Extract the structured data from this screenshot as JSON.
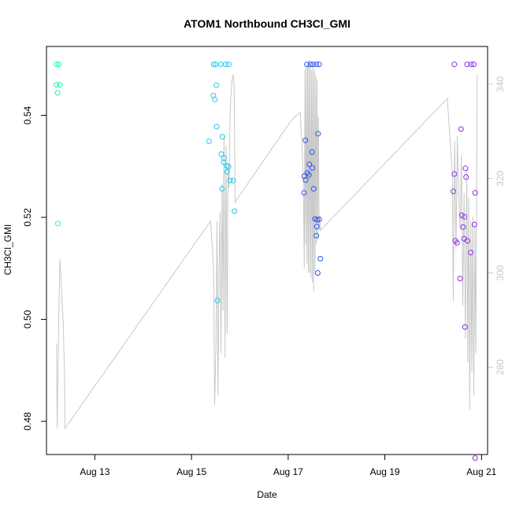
{
  "chart_data": {
    "type": "scatter",
    "title": "ATOM1 Northbound CH3Cl_GMI",
    "xlabel": "Date",
    "ylabel": "CH3Cl_GMI",
    "x_date_range": [
      "2016-08-12T00:00",
      "2016-08-21T03:00"
    ],
    "x_ticks": [
      {
        "value": "2016-08-13",
        "label": "Aug 13"
      },
      {
        "value": "2016-08-15",
        "label": "Aug 15"
      },
      {
        "value": "2016-08-17",
        "label": "Aug 17"
      },
      {
        "value": "2016-08-19",
        "label": "Aug 19"
      },
      {
        "value": "2016-08-21",
        "label": "Aug 21"
      }
    ],
    "ylim": [
      0.4735,
      0.5535
    ],
    "y_ticks": [
      0.48,
      0.5,
      0.52,
      0.54
    ],
    "y_tick_labels": [
      "0.48",
      "0.50",
      "0.52",
      "0.54"
    ],
    "y2lim": [
      261.5,
      348
    ],
    "y2_ticks": [
      280,
      300,
      320,
      340
    ],
    "y2_tick_labels": [
      "280",
      "300",
      "320",
      "340"
    ],
    "grid": false,
    "colors": {
      "axis": "#000000",
      "secondary_axis": "#c8c8c8",
      "line": "#c8c8c8"
    },
    "series": [
      {
        "color": "#22f2b8",
        "values": [
          [
            "2016-08-12T05:00",
            0.55
          ],
          [
            "2016-08-12T06:10",
            0.55
          ],
          [
            "2016-08-12T05:00",
            0.546
          ],
          [
            "2016-08-12T06:40",
            0.546
          ],
          [
            "2016-08-12T05:30",
            0.5444
          ],
          [
            "2016-08-12T05:40",
            0.5188
          ]
        ]
      },
      {
        "color": "#22c8ee",
        "values": [
          [
            "2016-08-15T11:00",
            0.55
          ],
          [
            "2016-08-15T12:00",
            0.55
          ],
          [
            "2016-08-15T14:30",
            0.55
          ],
          [
            "2016-08-15T17:00",
            0.55
          ],
          [
            "2016-08-15T18:30",
            0.55
          ],
          [
            "2016-08-15T12:20",
            0.5459
          ],
          [
            "2016-08-15T10:50",
            0.5439
          ],
          [
            "2016-08-15T11:40",
            0.5431
          ],
          [
            "2016-08-15T12:30",
            0.5378
          ],
          [
            "2016-08-15T15:20",
            0.5358
          ],
          [
            "2016-08-15T08:40",
            0.5349
          ],
          [
            "2016-08-15T14:50",
            0.5324
          ],
          [
            "2016-08-15T16:10",
            0.5316
          ],
          [
            "2016-08-15T16:00",
            0.5308
          ],
          [
            "2016-08-15T17:30",
            0.5301
          ],
          [
            "2016-08-15T18:20",
            0.5299
          ],
          [
            "2016-08-15T17:40",
            0.5289
          ],
          [
            "2016-08-15T19:10",
            0.5272
          ],
          [
            "2016-08-15T20:40",
            0.5272
          ],
          [
            "2016-08-15T15:10",
            0.5256
          ],
          [
            "2016-08-15T21:20",
            0.5212
          ],
          [
            "2016-08-15T12:50",
            0.5037
          ]
        ]
      },
      {
        "color": "#2c55ee",
        "values": [
          [
            "2016-08-17T09:20",
            0.55
          ],
          [
            "2016-08-17T11:00",
            0.55
          ],
          [
            "2016-08-17T12:20",
            0.55
          ],
          [
            "2016-08-17T14:00",
            0.55
          ],
          [
            "2016-08-17T15:20",
            0.55
          ],
          [
            "2016-08-17T14:50",
            0.5364
          ],
          [
            "2016-08-17T08:30",
            0.5351
          ],
          [
            "2016-08-17T11:50",
            0.5328
          ],
          [
            "2016-08-17T10:30",
            0.5304
          ],
          [
            "2016-08-17T12:00",
            0.5297
          ],
          [
            "2016-08-17T08:00",
            0.5281
          ],
          [
            "2016-08-17T09:30",
            0.5287
          ],
          [
            "2016-08-17T10:20",
            0.5283
          ],
          [
            "2016-08-17T08:40",
            0.5273
          ],
          [
            "2016-08-17T12:40",
            0.5256
          ],
          [
            "2016-08-17T07:50",
            0.5248
          ],
          [
            "2016-08-17T13:20",
            0.5197
          ],
          [
            "2016-08-17T15:20",
            0.5196
          ],
          [
            "2016-08-17T14:20",
            0.5195
          ],
          [
            "2016-08-17T14:10",
            0.5182
          ],
          [
            "2016-08-17T14:00",
            0.5164
          ],
          [
            "2016-08-17T16:00",
            0.5119
          ],
          [
            "2016-08-17T14:40",
            0.5091
          ]
        ]
      },
      {
        "color": "#8c2ee8",
        "values": [
          [
            "2016-08-20T10:30",
            0.55
          ],
          [
            "2016-08-20T16:50",
            0.55
          ],
          [
            "2016-08-20T18:50",
            0.55
          ],
          [
            "2016-08-20T20:10",
            0.55
          ],
          [
            "2016-08-20T13:50",
            0.5373
          ],
          [
            "2016-08-20T16:00",
            0.5296
          ],
          [
            "2016-08-20T10:30",
            0.5285
          ],
          [
            "2016-08-20T16:20",
            0.5279
          ],
          [
            "2016-08-20T10:00",
            0.5251
          ],
          [
            "2016-08-20T20:50",
            0.5248
          ],
          [
            "2016-08-20T14:10",
            0.5204
          ],
          [
            "2016-08-20T15:30",
            0.5201
          ],
          [
            "2016-08-20T20:30",
            0.5186
          ],
          [
            "2016-08-20T14:50",
            0.5181
          ],
          [
            "2016-08-20T15:20",
            0.5158
          ],
          [
            "2016-08-20T11:00",
            0.5154
          ],
          [
            "2016-08-20T17:00",
            0.5154
          ],
          [
            "2016-08-20T11:50",
            0.515
          ],
          [
            "2016-08-20T18:40",
            0.5131
          ],
          [
            "2016-08-20T13:20",
            0.508
          ],
          [
            "2016-08-20T15:50",
            0.4985
          ],
          [
            "2016-08-20T20:50",
            0.4728
          ]
        ]
      }
    ],
    "right_axis_series": {
      "color": "#c8c8c8",
      "values": [
        [
          "2016-08-12T05:00",
          285
        ],
        [
          "2016-08-12T05:20",
          267
        ],
        [
          "2016-08-12T06:10",
          292
        ],
        [
          "2016-08-12T06:40",
          303
        ],
        [
          "2016-08-12T07:30",
          296
        ],
        [
          "2016-08-12T08:20",
          289
        ],
        [
          "2016-08-12T09:00",
          278
        ],
        [
          "2016-08-12T09:10",
          267
        ],
        [
          "2016-08-15T09:30",
          311
        ],
        [
          "2016-08-15T11:00",
          301
        ],
        [
          "2016-08-15T11:30",
          272
        ],
        [
          "2016-08-15T12:10",
          285
        ],
        [
          "2016-08-15T12:40",
          311
        ],
        [
          "2016-08-15T13:10",
          274
        ],
        [
          "2016-08-15T13:40",
          301
        ],
        [
          "2016-08-15T14:10",
          313
        ],
        [
          "2016-08-15T14:40",
          283
        ],
        [
          "2016-08-15T15:10",
          319
        ],
        [
          "2016-08-15T15:40",
          292
        ],
        [
          "2016-08-15T16:10",
          329
        ],
        [
          "2016-08-15T16:40",
          282
        ],
        [
          "2016-08-15T17:10",
          327
        ],
        [
          "2016-08-15T17:40",
          287
        ],
        [
          "2016-08-15T18:10",
          322
        ],
        [
          "2016-08-15T18:40",
          318
        ],
        [
          "2016-08-15T19:10",
          334
        ],
        [
          "2016-08-15T19:40",
          338
        ],
        [
          "2016-08-15T20:10",
          341
        ],
        [
          "2016-08-15T20:40",
          342
        ],
        [
          "2016-08-15T21:10",
          340
        ],
        [
          "2016-08-15T21:40",
          315
        ],
        [
          "2016-08-17T01:00",
          332
        ],
        [
          "2016-08-17T03:00",
          333
        ],
        [
          "2016-08-17T06:00",
          334
        ],
        [
          "2016-08-17T07:30",
          321
        ],
        [
          "2016-08-17T08:00",
          301
        ],
        [
          "2016-08-17T08:20",
          343
        ],
        [
          "2016-08-17T08:40",
          306
        ],
        [
          "2016-08-17T09:00",
          344
        ],
        [
          "2016-08-17T09:20",
          302
        ],
        [
          "2016-08-17T09:40",
          344
        ],
        [
          "2016-08-17T10:00",
          300
        ],
        [
          "2016-08-17T10:20",
          345
        ],
        [
          "2016-08-17T10:40",
          300
        ],
        [
          "2016-08-17T11:00",
          344
        ],
        [
          "2016-08-17T11:20",
          299
        ],
        [
          "2016-08-17T11:40",
          343
        ],
        [
          "2016-08-17T12:00",
          298
        ],
        [
          "2016-08-17T12:20",
          344
        ],
        [
          "2016-08-17T12:40",
          296
        ],
        [
          "2016-08-17T13:00",
          343
        ],
        [
          "2016-08-17T13:20",
          300
        ],
        [
          "2016-08-17T13:40",
          342
        ],
        [
          "2016-08-17T14:00",
          306
        ],
        [
          "2016-08-17T14:20",
          341
        ],
        [
          "2016-08-17T14:40",
          307
        ],
        [
          "2016-08-17T15:00",
          333
        ],
        [
          "2016-08-17T15:20",
          309
        ],
        [
          "2016-08-17T15:40",
          312
        ],
        [
          "2016-08-17T16:00",
          309
        ],
        [
          "2016-08-20T07:00",
          337
        ],
        [
          "2016-08-20T09:30",
          321
        ],
        [
          "2016-08-20T10:00",
          294
        ],
        [
          "2016-08-20T10:40",
          328
        ],
        [
          "2016-08-20T11:20",
          305
        ],
        [
          "2016-08-20T12:00",
          329
        ],
        [
          "2016-08-20T12:40",
          317
        ],
        [
          "2016-08-20T13:20",
          309
        ],
        [
          "2016-08-20T14:00",
          325
        ],
        [
          "2016-08-20T14:40",
          293
        ],
        [
          "2016-08-20T15:20",
          317
        ],
        [
          "2016-08-20T16:00",
          286
        ],
        [
          "2016-08-20T16:40",
          322
        ],
        [
          "2016-08-20T17:10",
          281
        ],
        [
          "2016-08-20T17:40",
          316
        ],
        [
          "2016-08-20T18:10",
          271
        ],
        [
          "2016-08-20T18:40",
          311
        ],
        [
          "2016-08-20T19:10",
          279
        ],
        [
          "2016-08-20T19:40",
          312
        ],
        [
          "2016-08-20T20:10",
          274
        ],
        [
          "2016-08-20T20:40",
          310
        ],
        [
          "2016-08-20T21:10",
          283
        ],
        [
          "2016-08-20T21:50",
          342
        ]
      ]
    }
  }
}
